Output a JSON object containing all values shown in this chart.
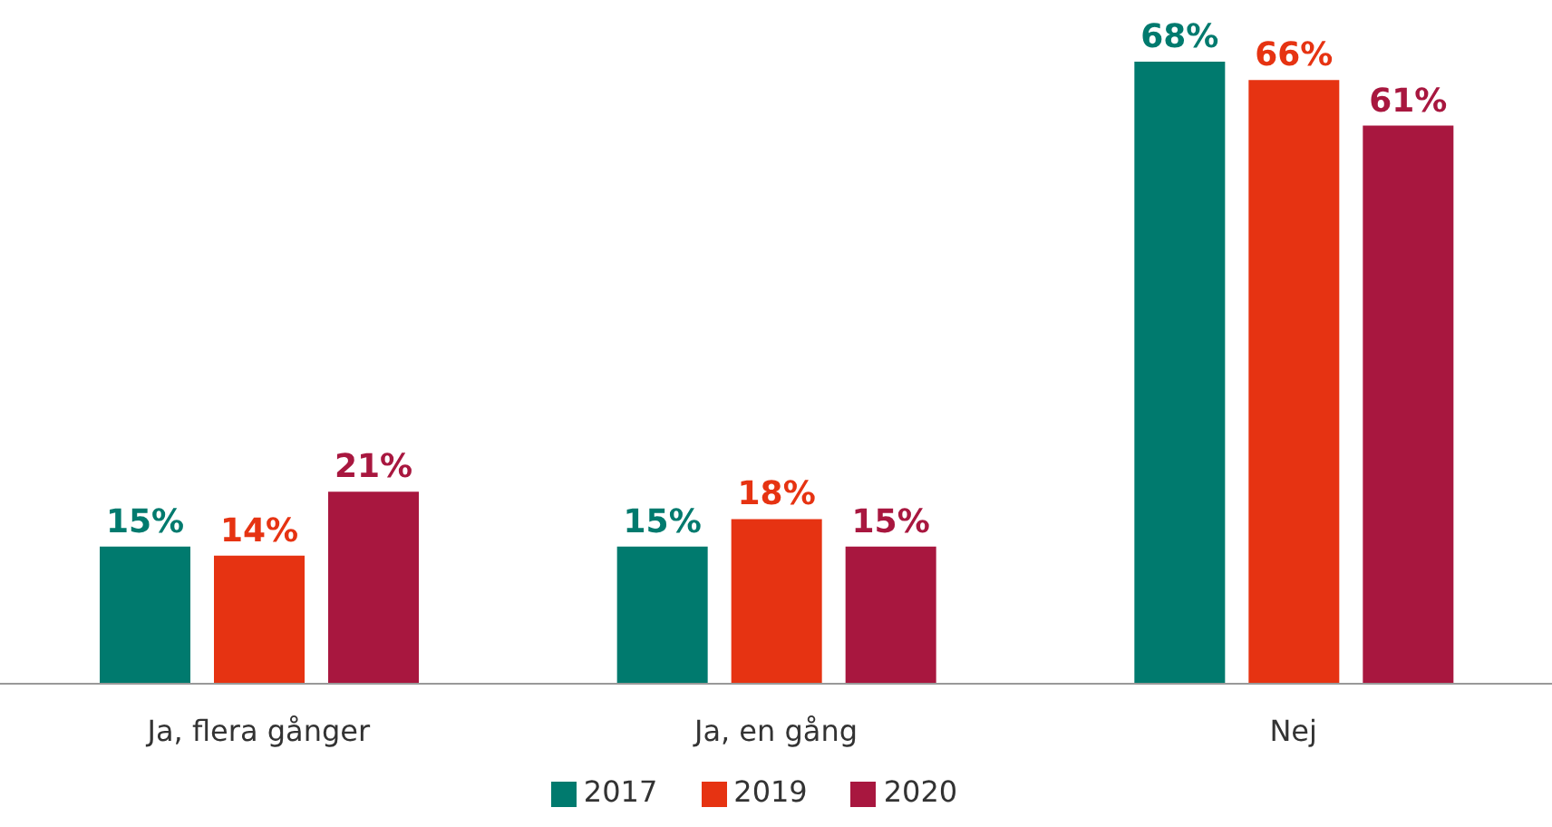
{
  "chart_data": {
    "type": "bar",
    "categories": [
      "Ja, flera gånger",
      "Ja, en gång",
      "Nej"
    ],
    "series": [
      {
        "name": "2017",
        "color": "#007a6e",
        "values": [
          15,
          15,
          68
        ],
        "value_labels": [
          "15%",
          "15%",
          "68%"
        ]
      },
      {
        "name": "2019",
        "color": "#e63312",
        "values": [
          14,
          18,
          66
        ],
        "value_labels": [
          "14%",
          "18%",
          "66%"
        ]
      },
      {
        "name": "2020",
        "color": "#a8173f",
        "values": [
          21,
          15,
          61
        ],
        "value_labels": [
          "21%",
          "15%",
          "61%"
        ]
      }
    ],
    "legend": "bottom",
    "grid": false
  }
}
